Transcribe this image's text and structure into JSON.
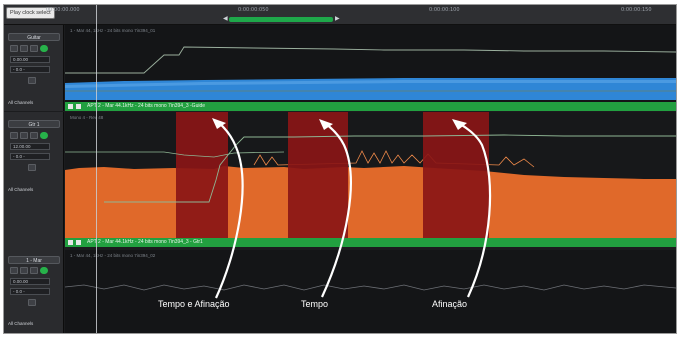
{
  "toolbar": {
    "play_label": "Play clock select"
  },
  "ruler": {
    "ticks": [
      "00:00:00.000",
      "0:00:00:050",
      "0:00:00:100",
      "0:00:00:150"
    ]
  },
  "tracks": [
    {
      "name": "Guitar",
      "row_values": [
        "0.00.00",
        "- 0.0 -"
      ],
      "channels_label": "All Channels",
      "lane_note": "1 - Mar 44, 1kHz - 24 bits mono 7in394_01",
      "region_label": "APT 2 - Mar 44.1kHz - 24 bits mono 7in394_3 -Guide",
      "waveform_color": "#2f86d6"
    },
    {
      "name": "Gtr 1",
      "row_values": [
        "12.00.00",
        "- 0.0 -"
      ],
      "channels_label": "All Channels",
      "lane_note": "Mono 4 - Rev 48",
      "region_label": "APT 2 - Mar 44.1kHz - 24 bits mono 7in394_3 - Gtr1",
      "waveform_color": "#e0692a",
      "highlight_color": "#8a1616"
    },
    {
      "name": "1 - Mar",
      "row_values": [
        "0.00.00",
        "- 0.0 -"
      ],
      "channels_label": "All Channels",
      "lane_note": "1 - Mar 44, 1kHz - 24 bits mono 7in394_02"
    }
  ],
  "annotations": [
    {
      "label": "Tempo e Afinação"
    },
    {
      "label": "Tempo"
    },
    {
      "label": "Afinação"
    }
  ],
  "colors": {
    "accent_green": "#22a040",
    "arrow": "#ffffff"
  }
}
